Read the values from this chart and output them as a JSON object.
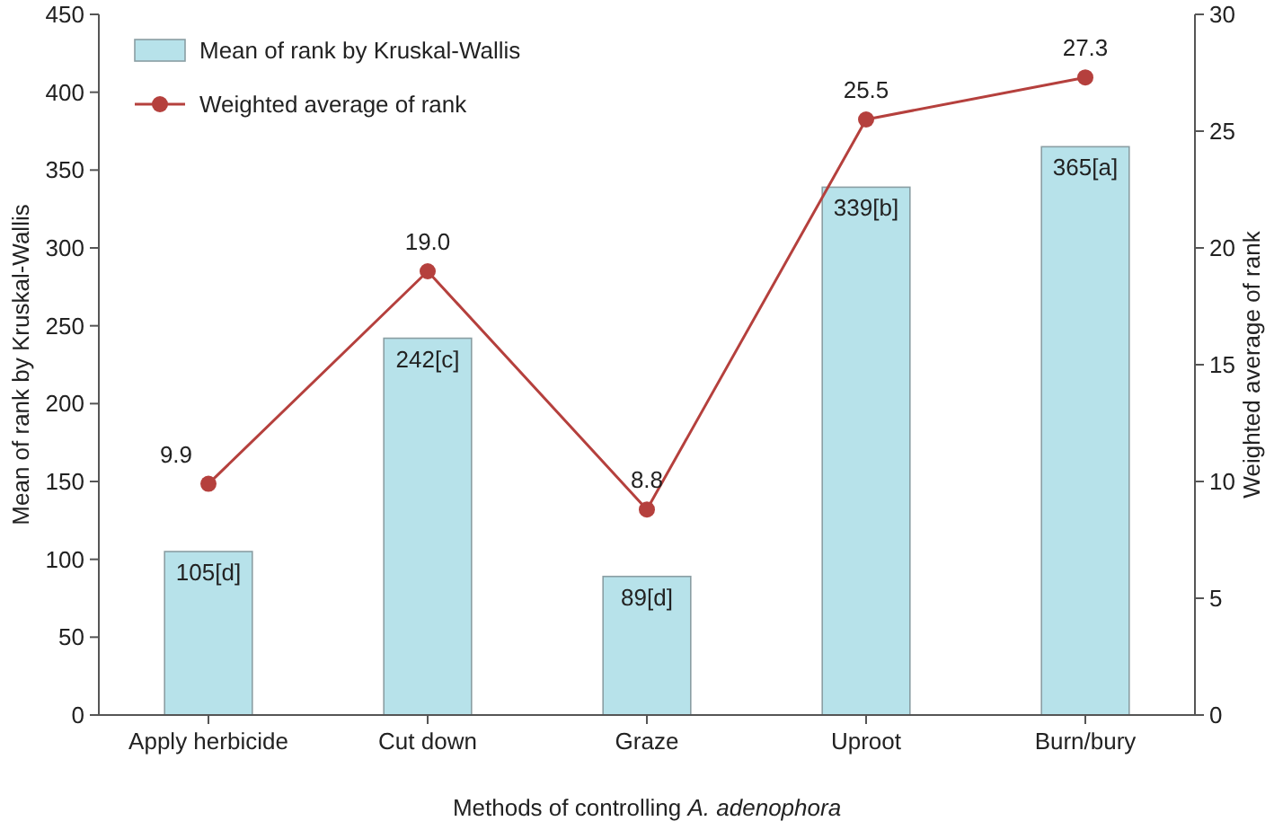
{
  "chart_data": {
    "type": "bar",
    "xlabel": "Methods of controlling A. adenophora",
    "ylabel": "Mean of rank by Kruskal-Wallis",
    "y2label": "Weighted average of rank",
    "categories": [
      "Apply herbicide",
      "Cut down",
      "Graze",
      "Uproot",
      "Burn/bury"
    ],
    "series": [
      {
        "name": "Mean of rank by Kruskal-Wallis",
        "color": "#b7e2ea",
        "values": [
          105,
          242,
          89,
          339,
          365
        ],
        "value_labels": [
          "105[d]",
          "242[c]",
          "89[d]",
          "339[b]",
          "365[a]"
        ]
      },
      {
        "name": "Weighted average of rank",
        "type": "line",
        "axis": "y2",
        "color": "#b5403d",
        "values": [
          9.9,
          19.0,
          8.8,
          25.5,
          27.3
        ],
        "value_labels": [
          "9.9",
          "19.0",
          "8.8",
          "25.5",
          "27.3"
        ]
      }
    ],
    "ylim": [
      0,
      450
    ],
    "yticks": [
      0,
      50,
      100,
      150,
      200,
      250,
      300,
      350,
      400,
      450
    ],
    "y2lim": [
      0,
      30
    ],
    "y2ticks": [
      0,
      5,
      10,
      15,
      20,
      25,
      30
    ],
    "legend": "top left",
    "marker": "circle",
    "line_style": "solid",
    "grid": false
  }
}
